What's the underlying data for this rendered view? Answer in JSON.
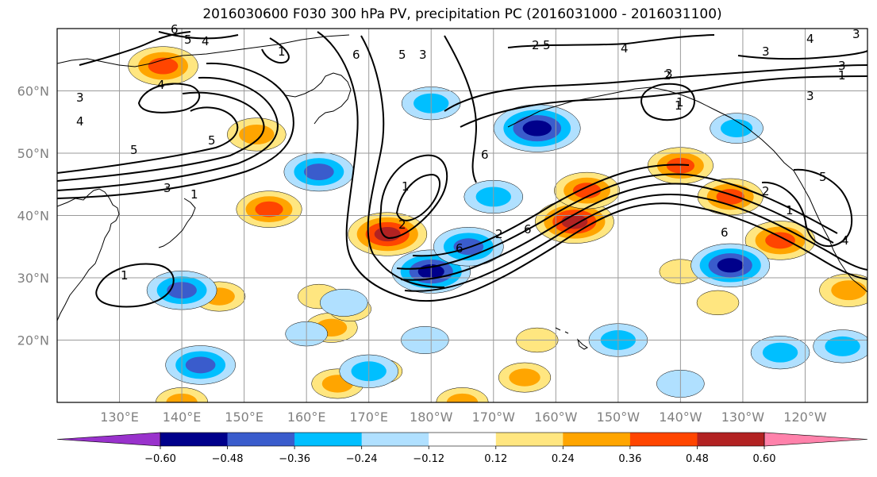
{
  "title": "2016030600 F030 300 hPa PV, precipitation PC (2016031000 - 2016031100)",
  "map": {
    "extent": {
      "lon_min": 120,
      "lon_max": 250,
      "lat_min": 10,
      "lat_max": 70
    },
    "lat_labels": [
      "60°N",
      "50°N",
      "40°N",
      "30°N",
      "20°N"
    ],
    "lat_values": [
      60,
      50,
      40,
      30,
      20
    ],
    "lon_labels": [
      "130°E",
      "140°E",
      "150°E",
      "160°E",
      "170°E",
      "180°W",
      "170°W",
      "160°W",
      "150°W",
      "140°W",
      "130°W",
      "120°W"
    ],
    "lon_values": [
      130,
      140,
      150,
      160,
      170,
      180,
      190,
      200,
      210,
      220,
      230,
      240
    ],
    "gridlines": true,
    "coastlines": true
  },
  "contours": {
    "variable": "300 hPa PV",
    "labels": [
      "6",
      "5",
      "4",
      "1",
      "6",
      "5",
      "3",
      "2",
      "5",
      "4",
      "3",
      "2",
      "1",
      "3",
      "4",
      "3",
      "4",
      "1",
      "6",
      "2",
      "4",
      "3",
      "5",
      "5",
      "3",
      "2",
      "1",
      "1",
      "6",
      "2",
      "6",
      "6",
      "5",
      "1",
      "3",
      "1",
      "4",
      "3",
      "1"
    ]
  },
  "precip_patches": [
    {
      "lon": 137,
      "lat": 64,
      "value": 0.4
    },
    {
      "lon": 154,
      "lat": 41,
      "value": 0.36
    },
    {
      "lon": 173,
      "lat": 37,
      "value": 0.48
    },
    {
      "lon": 203,
      "lat": 39,
      "value": 0.48
    },
    {
      "lon": 205,
      "lat": 44,
      "value": 0.36
    },
    {
      "lon": 228,
      "lat": 43,
      "value": 0.36
    },
    {
      "lon": 236,
      "lat": 36,
      "value": 0.4
    },
    {
      "lon": 220,
      "lat": 48,
      "value": 0.36
    },
    {
      "lon": 247,
      "lat": 28,
      "value": 0.3
    },
    {
      "lon": 164,
      "lat": 22,
      "value": 0.24
    },
    {
      "lon": 165,
      "lat": 13,
      "value": 0.24
    },
    {
      "lon": 185,
      "lat": 10,
      "value": 0.24
    },
    {
      "lon": 140,
      "lat": 10,
      "value": 0.24
    },
    {
      "lon": 195,
      "lat": 14,
      "value": 0.24
    },
    {
      "lon": 146,
      "lat": 27,
      "value": 0.24
    },
    {
      "lon": 162,
      "lat": 27,
      "value": 0.15
    },
    {
      "lon": 167,
      "lat": 25,
      "value": 0.15
    },
    {
      "lon": 172,
      "lat": 15,
      "value": 0.15
    },
    {
      "lon": 152,
      "lat": 53,
      "value": 0.3
    },
    {
      "lon": 220,
      "lat": 31,
      "value": 0.15
    },
    {
      "lon": 197,
      "lat": 20,
      "value": 0.15
    },
    {
      "lon": 226,
      "lat": 26,
      "value": 0.15
    },
    {
      "lon": 162,
      "lat": 47,
      "value": -0.4
    },
    {
      "lon": 140,
      "lat": 28,
      "value": -0.4
    },
    {
      "lon": 143,
      "lat": 16,
      "value": -0.4
    },
    {
      "lon": 180,
      "lat": 31,
      "value": -0.48
    },
    {
      "lon": 186,
      "lat": 35,
      "value": -0.4
    },
    {
      "lon": 180,
      "lat": 58,
      "value": -0.3
    },
    {
      "lon": 170,
      "lat": 15,
      "value": -0.3
    },
    {
      "lon": 179,
      "lat": 20,
      "value": -0.2
    },
    {
      "lon": 197,
      "lat": 54,
      "value": -0.55
    },
    {
      "lon": 228,
      "lat": 32,
      "value": -0.48
    },
    {
      "lon": 210,
      "lat": 20,
      "value": -0.3
    },
    {
      "lon": 236,
      "lat": 18,
      "value": -0.3
    },
    {
      "lon": 246,
      "lat": 19,
      "value": -0.3
    },
    {
      "lon": 229,
      "lat": 54,
      "value": -0.25
    },
    {
      "lon": 190,
      "lat": 43,
      "value": -0.3
    },
    {
      "lon": 166,
      "lat": 26,
      "value": -0.2
    },
    {
      "lon": 220,
      "lat": 13,
      "value": -0.2
    },
    {
      "lon": 160,
      "lat": 21,
      "value": -0.15
    }
  ],
  "colorbar": {
    "ticks": [
      "−0.60",
      "−0.48",
      "−0.36",
      "−0.24",
      "−0.12",
      "0.12",
      "0.24",
      "0.36",
      "0.48",
      "0.60"
    ],
    "bounds": [
      -0.72,
      -0.6,
      -0.48,
      -0.36,
      -0.24,
      -0.12,
      0.12,
      0.24,
      0.36,
      0.48,
      0.6,
      0.72
    ],
    "colors": [
      "#9932cc",
      "#00008b",
      "#3a5ccc",
      "#00bfff",
      "#b0e0ff",
      "#ffffff",
      "#ffe680",
      "#ffa500",
      "#ff4500",
      "#b22222",
      "#ff82ab"
    ],
    "extend": "both"
  }
}
